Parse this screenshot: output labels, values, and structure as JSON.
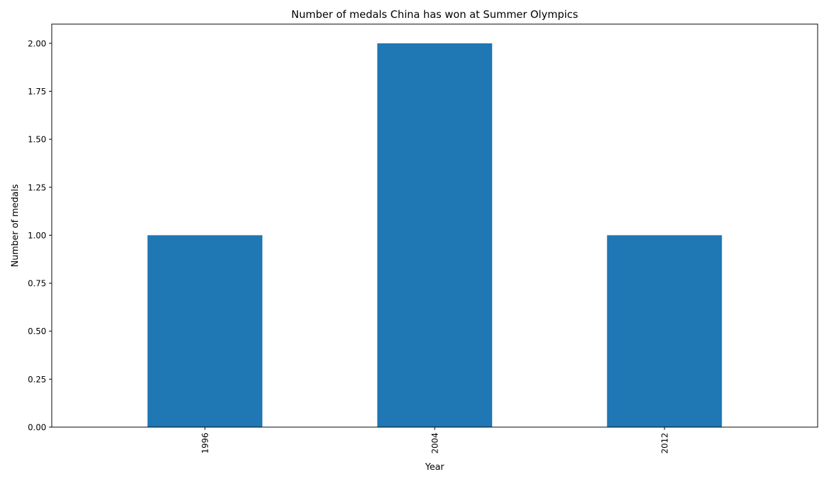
{
  "chart_data": {
    "type": "bar",
    "title": "Number of medals China has won at Summer Olympics",
    "xlabel": "Year",
    "ylabel": "Number of medals",
    "categories": [
      "1996",
      "2004",
      "2012"
    ],
    "values": [
      1,
      2,
      1
    ],
    "ylim": [
      0,
      2.1
    ],
    "yticks": [
      "0.00",
      "0.25",
      "0.50",
      "0.75",
      "1.00",
      "1.25",
      "1.50",
      "1.75",
      "2.00"
    ],
    "grid": false,
    "legend": "none",
    "bar_color": "#1f77b4",
    "x_tick_rotation": "vertical"
  }
}
